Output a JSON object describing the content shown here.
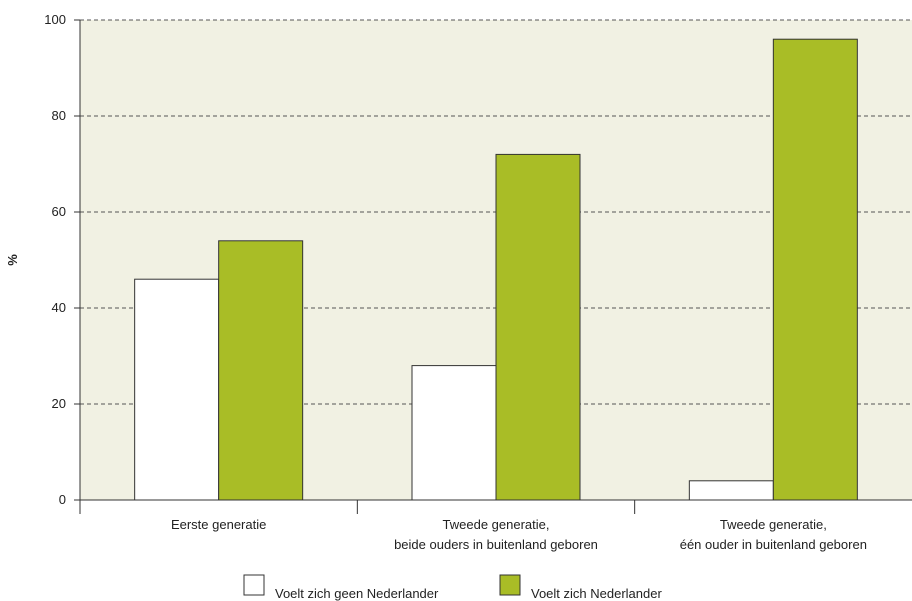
{
  "chart_data": {
    "type": "bar",
    "title": "",
    "xlabel": "",
    "ylabel": "%",
    "ylim": [
      0,
      100
    ],
    "yticks": [
      0,
      20,
      40,
      60,
      80,
      100
    ],
    "grid": true,
    "legend_position": "bottom",
    "categories": [
      [
        "Eerste generatie"
      ],
      [
        "Tweede generatie,",
        "beide ouders in buitenland geboren"
      ],
      [
        "Tweede generatie,",
        "één ouder in buitenland geboren"
      ]
    ],
    "series": [
      {
        "name": "Voelt zich geen Nederlander",
        "color": "#ffffff",
        "values": [
          46,
          28,
          4
        ]
      },
      {
        "name": "Voelt zich Nederlander",
        "color": "#a9bd26",
        "values": [
          54,
          72,
          96
        ]
      }
    ],
    "plot_background": "#f1f1e3"
  }
}
